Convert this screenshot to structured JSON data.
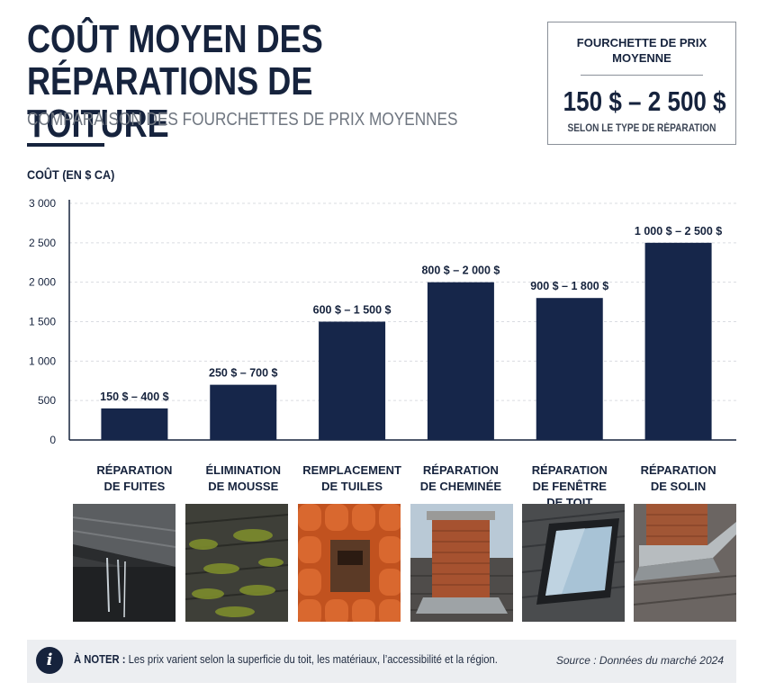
{
  "header": {
    "title": "COÛT MOYEN DES RÉPARATIONS DE TOITURE",
    "subtitle": "COMPARAISON DES FOURCHETTES DE PRIX MOYENNES"
  },
  "summary_box": {
    "label": "FOURCHETTE DE PRIX MOYENNE",
    "value": "150 $ – 2 500 $",
    "note": "SELON LE TYPE DE RÉPARATION"
  },
  "colors": {
    "navy": "#16233d",
    "bar": "#16264a",
    "grid": "#d9dce1"
  },
  "chart_data": {
    "type": "bar",
    "ylabel": "COÛT (EN $ CA)",
    "ylim": [
      0,
      3000
    ],
    "yticks": [
      0,
      500,
      1000,
      1500,
      2000,
      2500,
      3000
    ],
    "ytick_labels": [
      "0",
      "500",
      "1 000",
      "1 500",
      "2 000",
      "2 500",
      "3 000"
    ],
    "grid": true,
    "categories": [
      [
        "RÉPARATION",
        "DE FUITES"
      ],
      [
        "ÉLIMINATION",
        "DE MOUSSE"
      ],
      [
        "REMPLACEMENT",
        "DE TUILES"
      ],
      [
        "RÉPARATION",
        "DE CHEMINÉE"
      ],
      [
        "RÉPARATION",
        "DE FENÊTRE",
        "DE TOIT"
      ],
      [
        "RÉPARATION",
        "DE SOLIN"
      ]
    ],
    "values": [
      400,
      700,
      1500,
      2000,
      1800,
      2500
    ],
    "ranges": [
      [
        150,
        400
      ],
      [
        250,
        700
      ],
      [
        600,
        1500
      ],
      [
        800,
        2000
      ],
      [
        900,
        1800
      ],
      [
        1000,
        2500
      ]
    ],
    "data_labels": [
      "150 $ – 400 $",
      "250 $ – 700 $",
      "600 $ – 1 500 $",
      "800 $ – 2 000 $",
      "900 $ – 1 800 $",
      "1 000 $ – 2 500 $"
    ]
  },
  "footer": {
    "note_label": "À NOTER :",
    "note_text": "Les prix varient selon la superficie du toit, les matériaux, l’accessibilité et la région.",
    "source": "Source : Données du marché 2024"
  }
}
